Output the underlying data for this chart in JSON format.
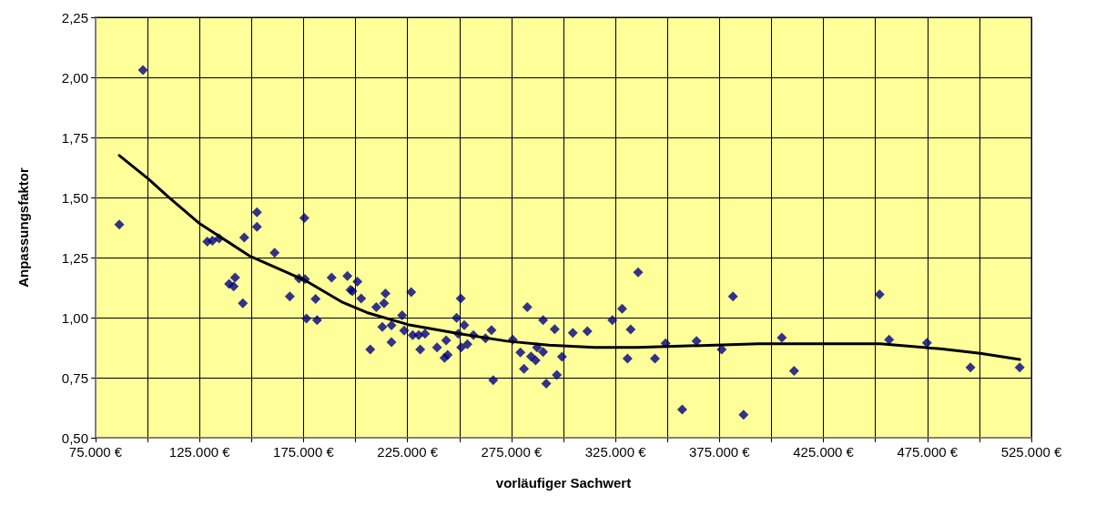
{
  "chart_data": {
    "type": "scatter",
    "xlabel": "vorläufiger Sachwert",
    "ylabel": "Anpassungsfaktor",
    "xlim": [
      75000,
      525000
    ],
    "xticks": [
      {
        "value": 75000,
        "label": "75.000 €"
      },
      {
        "value": 100000,
        "label": null
      },
      {
        "value": 125000,
        "label": "125.000 €"
      },
      {
        "value": 150000,
        "label": null
      },
      {
        "value": 175000,
        "label": "175.000 €"
      },
      {
        "value": 200000,
        "label": null
      },
      {
        "value": 225000,
        "label": "225.000 €"
      },
      {
        "value": 250000,
        "label": null
      },
      {
        "value": 275000,
        "label": "275.000 €"
      },
      {
        "value": 300000,
        "label": null
      },
      {
        "value": 325000,
        "label": "325.000 €"
      },
      {
        "value": 350000,
        "label": null
      },
      {
        "value": 375000,
        "label": "375.000 €"
      },
      {
        "value": 400000,
        "label": null
      },
      {
        "value": 425000,
        "label": "425.000 €"
      },
      {
        "value": 450000,
        "label": null
      },
      {
        "value": 475000,
        "label": "475.000 €"
      },
      {
        "value": 500000,
        "label": null
      },
      {
        "value": 525000,
        "label": "525.000 €"
      }
    ],
    "ylim": [
      0.5,
      2.25
    ],
    "yticks": [
      {
        "value": 0.5,
        "label": "0,50"
      },
      {
        "value": 0.75,
        "label": "0,75"
      },
      {
        "value": 1,
        "label": "1,00"
      },
      {
        "value": 1.25,
        "label": "1,25"
      },
      {
        "value": 1.5,
        "label": "1,50"
      },
      {
        "value": 1.75,
        "label": "1,75"
      },
      {
        "value": 2,
        "label": "2,00"
      },
      {
        "value": 2.25,
        "label": "2,25"
      }
    ],
    "grid": true,
    "series": [
      {
        "type": "scatter",
        "color": "#000080",
        "marker": "diamond",
        "x": [
          86400,
          97800,
          128700,
          131200,
          134400,
          152600,
          152600,
          146500,
          161100,
          139200,
          142100,
          141400,
          145800,
          168400,
          172800,
          175700,
          175400,
          176400,
          181500,
          180800,
          188500,
          196100,
          200900,
          197600,
          198500,
          202700,
          214400,
          210000,
          213700,
          226800,
          222400,
          212900,
          217300,
          217300,
          207100,
          223400,
          227500,
          230400,
          233400,
          231100,
          239200,
          243600,
          244300,
          242800,
          250600,
          248600,
          252300,
          249400,
          250800,
          253800,
          256700,
          265400,
          262500,
          266200,
          275600,
          279300,
          282600,
          281000,
          284400,
          286600,
          287300,
          290200,
          290200,
          291700,
          295800,
          296800,
          299300,
          304500,
          311500,
          323500,
          328200,
          332300,
          330800,
          335900,
          344000,
          349100,
          357100,
          364000,
          376100,
          381500,
          386600,
          405000,
          410900,
          452000,
          456600,
          474800,
          495700,
          519400
        ],
        "values": [
          1.387,
          2.03,
          1.316,
          1.32,
          1.33,
          1.438,
          1.378,
          1.333,
          1.27,
          1.14,
          1.167,
          1.13,
          1.06,
          1.088,
          1.163,
          1.16,
          1.415,
          0.996,
          0.99,
          1.078,
          1.167,
          1.173,
          1.15,
          1.116,
          1.11,
          1.08,
          1.1,
          1.044,
          1.06,
          1.106,
          1.009,
          0.961,
          0.968,
          0.898,
          0.867,
          0.946,
          0.927,
          0.927,
          0.933,
          0.867,
          0.876,
          0.905,
          0.845,
          0.832,
          1.08,
          0.999,
          0.969,
          0.933,
          0.876,
          0.889,
          0.927,
          0.948,
          0.914,
          0.74,
          0.908,
          0.855,
          1.044,
          0.787,
          0.838,
          0.822,
          0.876,
          0.99,
          0.857,
          0.725,
          0.952,
          0.761,
          0.837,
          0.937,
          0.943,
          0.99,
          1.037,
          0.951,
          0.83,
          1.188,
          0.83,
          0.893,
          0.617,
          0.902,
          0.867,
          1.088,
          0.596,
          0.917,
          0.778,
          1.097,
          0.908,
          0.895,
          0.793,
          0.793
        ]
      },
      {
        "type": "line",
        "color": "#000000",
        "marker": "none",
        "line_style": "solid",
        "x": [
          86400,
          100400,
          110000,
          124600,
          149400,
          175700,
          193200,
          205500,
          225200,
          250100,
          272800,
          293000,
          315000,
          335500,
          393700,
          452300,
          481300,
          500400,
          519400
        ],
        "values": [
          1.675,
          1.577,
          1.502,
          1.394,
          1.255,
          1.155,
          1.066,
          1.021,
          0.971,
          0.933,
          0.902,
          0.885,
          0.876,
          0.876,
          0.891,
          0.891,
          0.87,
          0.851,
          0.826
        ]
      }
    ]
  }
}
